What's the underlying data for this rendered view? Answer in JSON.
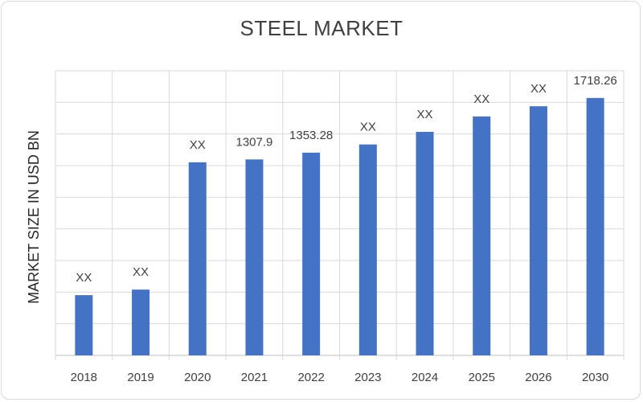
{
  "chart_data": {
    "type": "bar",
    "title": "STEEL MARKET",
    "xlabel": "",
    "ylabel": "MARKET SIZE IN USD BN",
    "categories": [
      "2018",
      "2019",
      "2020",
      "2021",
      "2022",
      "2023",
      "2024",
      "2025",
      "2026",
      "2030"
    ],
    "values": [
      402,
      439,
      1289,
      1307.9,
      1353.28,
      1408,
      1492,
      1595,
      1663,
      1718.26
    ],
    "data_labels": [
      "XX",
      "XX",
      "XX",
      "1307.9",
      "1353.28",
      "XX",
      "XX",
      "XX",
      "XX",
      "1718.26"
    ],
    "ylim": [
      0,
      1900
    ],
    "grid": true,
    "bar_color": "#4472c4",
    "legend": "none"
  }
}
